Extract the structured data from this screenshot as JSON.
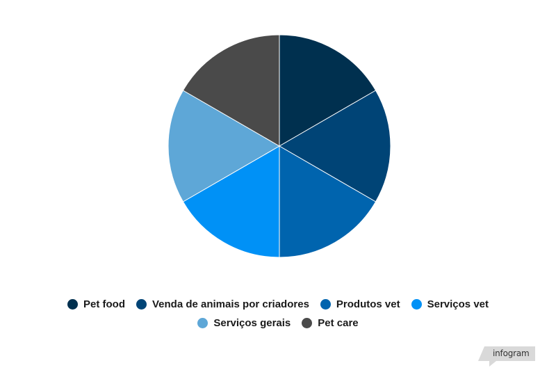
{
  "chart_data": {
    "type": "pie",
    "categories": [
      "Pet food",
      "Venda de animais por criadores",
      "Produtos vet",
      "Serviços vet",
      "Serviços gerais",
      "Pet care"
    ],
    "values": [
      1,
      1,
      1,
      1,
      1,
      1
    ],
    "colors": [
      "#00304f",
      "#004476",
      "#0064ae",
      "#0091f6",
      "#5ea7d7",
      "#4a4a4a"
    ],
    "legend_position": "bottom",
    "start_angle_deg": 0,
    "direction": "clockwise"
  },
  "legend": {
    "rows": [
      [
        0,
        1,
        2,
        3
      ],
      [
        4,
        5
      ]
    ]
  },
  "branding": {
    "watermark": "infogram",
    "watermark_color": "#d9d9d9"
  }
}
